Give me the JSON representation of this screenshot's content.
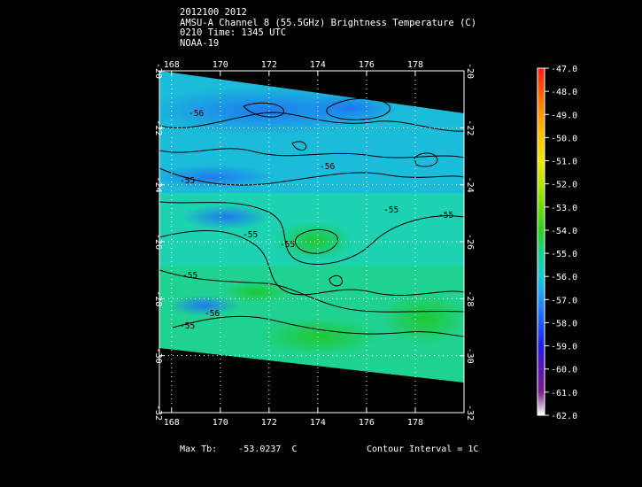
{
  "header": {
    "line1": "2012100 2012",
    "line2": "AMSU-A Channel 8 (55.5GHz) Brightness Temperature (C)",
    "line3": "0210 Time: 1345 UTC",
    "line4": "NOAA-19"
  },
  "axes": {
    "lon_ticks": [
      "168",
      "170",
      "172",
      "174",
      "176",
      "178"
    ],
    "lat_ticks": [
      "-20",
      "-22",
      "-24",
      "-26",
      "-28",
      "-30",
      "-32"
    ],
    "lon_range": [
      167.5,
      180
    ],
    "lat_range": [
      -32,
      -20
    ]
  },
  "contours": {
    "labels": [
      "-56",
      "-56",
      "-55",
      "-55",
      "-55",
      "-55",
      "-55",
      "-55",
      "-56",
      "-55"
    ]
  },
  "colorbar": {
    "values": [
      "-47.0",
      "-48.0",
      "-49.0",
      "-50.0",
      "-51.0",
      "-52.0",
      "-53.0",
      "-54.0",
      "-55.0",
      "-56.0",
      "-57.0",
      "-58.0",
      "-59.0",
      "-60.0",
      "-61.0",
      "-62.0"
    ],
    "colors": [
      "#ff1a1a",
      "#ff5a00",
      "#ff9a00",
      "#ffc800",
      "#f0e600",
      "#b4e600",
      "#6edc00",
      "#2ad21e",
      "#19d28c",
      "#19c8d2",
      "#1e96ff",
      "#1e5aff",
      "#1e1ee6",
      "#5a14b4",
      "#781e8c",
      "#ffffff"
    ]
  },
  "footer": {
    "max_label": "Max Tb:",
    "max_value": "-53.0237",
    "max_unit": "C",
    "contour_interval": "Contour Interval = 1C"
  }
}
